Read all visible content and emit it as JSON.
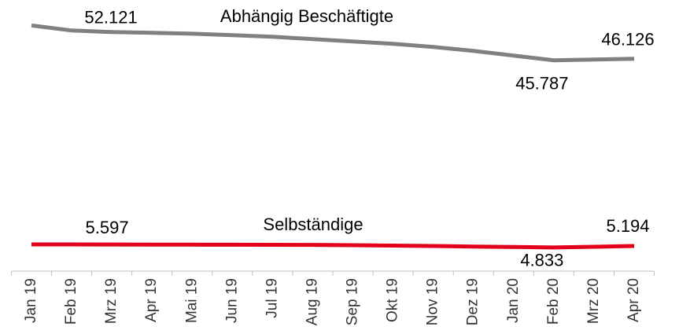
{
  "chart_data": {
    "type": "line",
    "categories": [
      "Jan 19",
      "Feb 19",
      "Mrz 19",
      "Apr 19",
      "Mai 19",
      "Jun 19",
      "Jul 19",
      "Aug 19",
      "Sep 19",
      "Okt 19",
      "Nov 19",
      "Dez 19",
      "Jan 20",
      "Feb 20",
      "Mrz 20",
      "Apr 20"
    ],
    "series": [
      {
        "name": "Abhängig Beschäftigte",
        "color": "#808080",
        "values": [
          53.2,
          52.121,
          51.79,
          51.62,
          51.45,
          51.12,
          50.79,
          50.29,
          49.79,
          49.29,
          48.62,
          47.79,
          46.79,
          45.787,
          45.95,
          46.126
        ],
        "value_labels": [
          null,
          "52.121",
          null,
          null,
          null,
          null,
          null,
          null,
          null,
          null,
          null,
          null,
          null,
          "45.787",
          null,
          "46.126"
        ]
      },
      {
        "name": "Selbständige",
        "color": "#e2001a",
        "axis": "y2",
        "values": [
          5.6,
          5.597,
          5.58,
          5.56,
          5.54,
          5.52,
          5.5,
          5.48,
          5.4,
          5.3,
          5.2,
          5.05,
          4.95,
          4.833,
          5.0,
          5.194
        ],
        "value_labels": [
          null,
          "5.597",
          null,
          null,
          null,
          null,
          null,
          null,
          null,
          null,
          null,
          null,
          null,
          "4.833",
          null,
          "5.194"
        ]
      }
    ],
    "ylim": [
      1,
      58.6
    ],
    "y2lim": [
      -1.2,
      67.8
    ]
  }
}
